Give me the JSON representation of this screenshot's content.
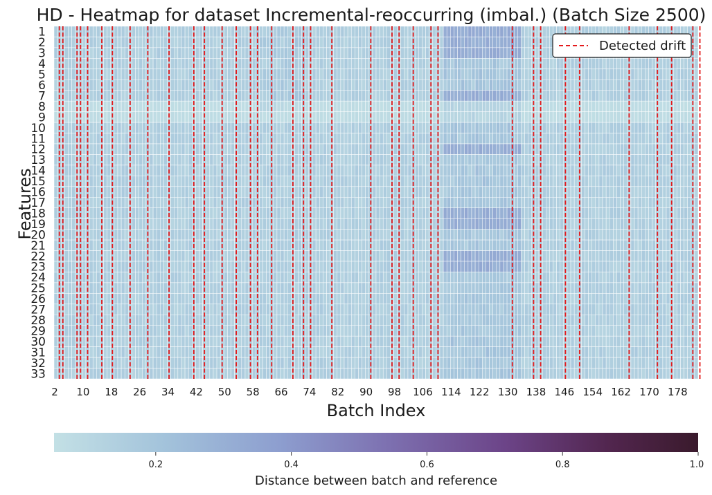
{
  "chart_data": {
    "type": "heatmap",
    "title": "HD - Heatmap for dataset Incremental-reoccurring (imbal.) (Batch Size 2500)",
    "xlabel": "Batch Index",
    "ylabel": "Features",
    "x_range": [
      2,
      183
    ],
    "xticks": [
      2,
      10,
      18,
      26,
      34,
      42,
      50,
      58,
      66,
      74,
      82,
      90,
      98,
      106,
      114,
      122,
      130,
      138,
      146,
      154,
      162,
      170,
      178
    ],
    "features": [
      "1",
      "2",
      "3",
      "4",
      "5",
      "6",
      "7",
      "8",
      "9",
      "10",
      "11",
      "12",
      "13",
      "14",
      "15",
      "16",
      "17",
      "18",
      "19",
      "20",
      "21",
      "22",
      "23",
      "24",
      "25",
      "26",
      "27",
      "28",
      "29",
      "30",
      "31",
      "32",
      "33"
    ],
    "value_range_typical": [
      0.05,
      0.3
    ],
    "elevated_region": {
      "batches": [
        112,
        133
      ],
      "features": [
        "1",
        "2",
        "3",
        "7",
        "12",
        "18",
        "19",
        "22",
        "23"
      ],
      "approx_value": 0.3
    },
    "drift_batches": [
      3,
      4,
      8,
      9,
      11,
      15,
      18,
      23,
      28,
      34,
      41,
      44,
      49,
      53,
      57,
      59,
      63,
      69,
      72,
      74,
      80,
      91,
      97,
      99,
      103,
      108,
      110,
      131,
      137,
      139,
      146,
      150,
      164,
      172,
      176,
      182,
      184
    ],
    "legend": {
      "label": "Detected drift",
      "position": "top-right",
      "line_color": "#e41a1c"
    },
    "colorbar": {
      "label": "Distance between batch and reference",
      "range": [
        0.05,
        1.0
      ],
      "ticks": [
        "0.2",
        "0.4",
        "0.6",
        "0.8",
        "1.0"
      ],
      "colors": [
        "#c3e0e5",
        "#a3c3db",
        "#8d9ecf",
        "#7d70b0",
        "#6c4488",
        "#52264f",
        "#3a1a2c"
      ]
    }
  }
}
